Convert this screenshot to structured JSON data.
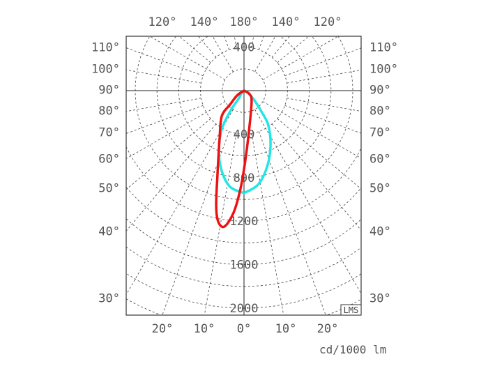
{
  "diagram": {
    "type": "polar-light-distribution",
    "unit_label": "cd/1000 lm",
    "logo_text": "LMS",
    "top_angle_labels": [
      "120°",
      "140°",
      "180°",
      "140°",
      "120°"
    ],
    "bottom_angle_labels": [
      "20°",
      "10°",
      "0°",
      "10°",
      "20°"
    ],
    "left_angle_labels": [
      "110°",
      "100°",
      "90°",
      "80°",
      "70°",
      "60°",
      "50°",
      "40°",
      "30°"
    ],
    "right_angle_labels": [
      "110°",
      "100°",
      "90°",
      "80°",
      "70°",
      "60°",
      "50°",
      "40°",
      "30°"
    ],
    "radial_labels_up": [
      "400"
    ],
    "radial_labels_down": [
      "400",
      "800",
      "1200",
      "1600",
      "2000"
    ],
    "grid": {
      "circle_step_cd": 200,
      "angle_step_deg": 10,
      "style": "dashed"
    },
    "series": [
      {
        "color": "#22e6e6",
        "points": [
          [
            0,
            942
          ],
          [
            8.4,
            875
          ],
          [
            16.7,
            735
          ],
          [
            25.4,
            568
          ],
          [
            35,
            391
          ],
          [
            39.8,
            250
          ],
          [
            50,
            100
          ],
          [
            0,
            0
          ],
          [
            -33.7,
            92
          ],
          [
            -33.7,
            231
          ],
          [
            -30,
            408
          ],
          [
            -23,
            592
          ],
          [
            -15.6,
            765
          ],
          [
            -8.2,
            894
          ],
          [
            0,
            942
          ]
        ]
      },
      {
        "color": "#ee1111",
        "points": [
          [
            0,
            0
          ],
          [
            58,
            60
          ],
          [
            36,
            119
          ],
          [
            9.1,
            324
          ],
          [
            1.1,
            641
          ],
          [
            -2,
            898
          ],
          [
            -4.9,
            1127
          ],
          [
            -8.2,
            1263
          ],
          [
            -11.1,
            1229
          ],
          [
            -13.6,
            1088
          ],
          [
            -17.6,
            806
          ],
          [
            -26.6,
            502
          ],
          [
            -40.9,
            313
          ],
          [
            -45,
            181
          ],
          [
            -55,
            78
          ],
          [
            0,
            0
          ]
        ]
      }
    ]
  }
}
